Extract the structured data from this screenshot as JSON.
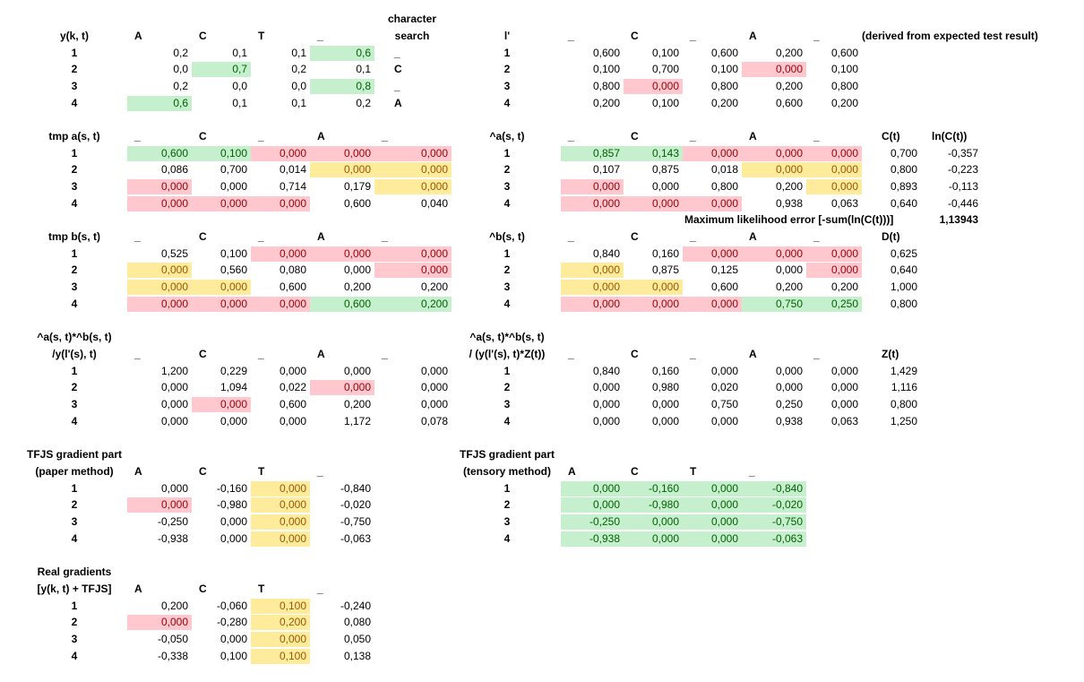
{
  "colors": {
    "green": "#c6efce",
    "red": "#ffc7ce",
    "yellow": "#ffeb9c"
  },
  "blocks": [
    {
      "id": "y",
      "x": 0,
      "top": 32,
      "label": [
        "y(k, t)"
      ],
      "col_headers": [
        "A",
        "C",
        "T",
        "_"
      ],
      "rows": [
        [
          "1",
          "0,2",
          "0,1",
          "0,1",
          "0,6"
        ],
        [
          "2",
          "0,0",
          "0,7",
          "0,2",
          "0,1"
        ],
        [
          "3",
          "0,2",
          "0,0",
          "0,0",
          "0,8"
        ],
        [
          "4",
          "0,6",
          "0,1",
          "0,1",
          "0,2"
        ]
      ],
      "hl": [
        [
          0,
          3,
          "green"
        ],
        [
          1,
          1,
          "green"
        ],
        [
          2,
          3,
          "green"
        ],
        [
          3,
          0,
          "green"
        ]
      ]
    },
    {
      "id": "lprime",
      "x": 1,
      "top": 32,
      "label": [
        "l'"
      ],
      "col_headers": [
        "_",
        "C",
        "_",
        "A",
        "_"
      ],
      "rows": [
        [
          "1",
          "0,600",
          "0,100",
          "0,600",
          "0,200",
          "0,600"
        ],
        [
          "2",
          "0,100",
          "0,700",
          "0,100",
          "0,000",
          "0,100"
        ],
        [
          "3",
          "0,800",
          "0,000",
          "0,800",
          "0,200",
          "0,800"
        ],
        [
          "4",
          "0,200",
          "0,100",
          "0,200",
          "0,600",
          "0,200"
        ]
      ],
      "hl": [
        [
          1,
          3,
          "red"
        ],
        [
          2,
          1,
          "red"
        ]
      ]
    },
    {
      "id": "tmpa",
      "x": 0,
      "top": 144,
      "label": [
        "tmp a(s, t)"
      ],
      "col_headers": [
        "_",
        "C",
        "_",
        "A",
        "_"
      ],
      "rows": [
        [
          "1",
          "0,600",
          "0,100",
          "0,000",
          "0,000",
          "0,000"
        ],
        [
          "2",
          "0,086",
          "0,700",
          "0,014",
          "0,000",
          "0,000"
        ],
        [
          "3",
          "0,000",
          "0,000",
          "0,714",
          "0,179",
          "0,000"
        ],
        [
          "4",
          "0,000",
          "0,000",
          "0,000",
          "0,600",
          "0,040"
        ]
      ],
      "hl": [
        [
          0,
          0,
          "green"
        ],
        [
          0,
          1,
          "green"
        ],
        [
          0,
          2,
          "red"
        ],
        [
          0,
          3,
          "red"
        ],
        [
          0,
          4,
          "red"
        ],
        [
          1,
          3,
          "yellow"
        ],
        [
          1,
          4,
          "yellow"
        ],
        [
          2,
          0,
          "red"
        ],
        [
          2,
          4,
          "yellow"
        ],
        [
          3,
          0,
          "red"
        ],
        [
          3,
          1,
          "red"
        ],
        [
          3,
          2,
          "red"
        ]
      ]
    },
    {
      "id": "hata",
      "x": 1,
      "top": 144,
      "label": [
        "^a(s, t)"
      ],
      "col_headers": [
        "_",
        "C",
        "_",
        "A",
        "_"
      ],
      "rows": [
        [
          "1",
          "0,857",
          "0,143",
          "0,000",
          "0,000",
          "0,000"
        ],
        [
          "2",
          "0,107",
          "0,875",
          "0,018",
          "0,000",
          "0,000"
        ],
        [
          "3",
          "0,000",
          "0,000",
          "0,800",
          "0,200",
          "0,000"
        ],
        [
          "4",
          "0,000",
          "0,000",
          "0,000",
          "0,938",
          "0,063"
        ]
      ],
      "hl": [
        [
          0,
          0,
          "green"
        ],
        [
          0,
          1,
          "green"
        ],
        [
          0,
          2,
          "red"
        ],
        [
          0,
          3,
          "red"
        ],
        [
          0,
          4,
          "red"
        ],
        [
          1,
          3,
          "yellow"
        ],
        [
          1,
          4,
          "yellow"
        ],
        [
          2,
          0,
          "red"
        ],
        [
          2,
          4,
          "yellow"
        ],
        [
          3,
          0,
          "red"
        ],
        [
          3,
          1,
          "red"
        ],
        [
          3,
          2,
          "red"
        ]
      ]
    },
    {
      "id": "tmpb",
      "x": 0,
      "top": 256,
      "label": [
        "tmp b(s, t)"
      ],
      "col_headers": [
        "_",
        "C",
        "_",
        "A",
        "_"
      ],
      "rows": [
        [
          "1",
          "0,525",
          "0,100",
          "0,000",
          "0,000",
          "0,000"
        ],
        [
          "2",
          "0,000",
          "0,560",
          "0,080",
          "0,000",
          "0,000"
        ],
        [
          "3",
          "0,000",
          "0,000",
          "0,600",
          "0,200",
          "0,200"
        ],
        [
          "4",
          "0,000",
          "0,000",
          "0,000",
          "0,600",
          "0,200"
        ]
      ],
      "hl": [
        [
          0,
          2,
          "red"
        ],
        [
          0,
          3,
          "red"
        ],
        [
          0,
          4,
          "red"
        ],
        [
          1,
          0,
          "yellow"
        ],
        [
          1,
          4,
          "red"
        ],
        [
          2,
          0,
          "yellow"
        ],
        [
          2,
          1,
          "yellow"
        ],
        [
          3,
          0,
          "red"
        ],
        [
          3,
          1,
          "red"
        ],
        [
          3,
          2,
          "red"
        ],
        [
          3,
          3,
          "green"
        ],
        [
          3,
          4,
          "green"
        ]
      ]
    },
    {
      "id": "hatb",
      "x": 1,
      "top": 256,
      "label": [
        "^b(s, t)"
      ],
      "col_headers": [
        "_",
        "C",
        "_",
        "A",
        "_"
      ],
      "rows": [
        [
          "1",
          "0,840",
          "0,160",
          "0,000",
          "0,000",
          "0,000"
        ],
        [
          "2",
          "0,000",
          "0,875",
          "0,125",
          "0,000",
          "0,000"
        ],
        [
          "3",
          "0,000",
          "0,000",
          "0,600",
          "0,200",
          "0,200"
        ],
        [
          "4",
          "0,000",
          "0,000",
          "0,000",
          "0,750",
          "0,250"
        ]
      ],
      "hl": [
        [
          0,
          2,
          "red"
        ],
        [
          0,
          3,
          "red"
        ],
        [
          0,
          4,
          "red"
        ],
        [
          1,
          0,
          "yellow"
        ],
        [
          1,
          4,
          "red"
        ],
        [
          2,
          0,
          "yellow"
        ],
        [
          2,
          1,
          "yellow"
        ],
        [
          3,
          0,
          "red"
        ],
        [
          3,
          1,
          "red"
        ],
        [
          3,
          2,
          "red"
        ],
        [
          3,
          3,
          "green"
        ],
        [
          3,
          4,
          "green"
        ]
      ]
    },
    {
      "id": "ab_y",
      "x": 0,
      "top": 387,
      "label": [
        "^a(s, t)*^b(s, t)",
        "/y(l'(s), t)"
      ],
      "col_headers": [
        "_",
        "C",
        "_",
        "A",
        "_"
      ],
      "rows": [
        [
          "1",
          "1,200",
          "0,229",
          "0,000",
          "0,000",
          "0,000"
        ],
        [
          "2",
          "0,000",
          "1,094",
          "0,022",
          "0,000",
          "0,000"
        ],
        [
          "3",
          "0,000",
          "0,000",
          "0,600",
          "0,200",
          "0,000"
        ],
        [
          "4",
          "0,000",
          "0,000",
          "0,000",
          "1,172",
          "0,078"
        ]
      ],
      "hl": [
        [
          1,
          3,
          "red"
        ],
        [
          2,
          1,
          "red"
        ]
      ]
    },
    {
      "id": "ab_yz",
      "x": 1,
      "top": 387,
      "label": [
        "^a(s, t)*^b(s, t)",
        "/ (y(l'(s), t)*Z(t))"
      ],
      "col_headers": [
        "_",
        "C",
        "_",
        "A",
        "_"
      ],
      "rows": [
        [
          "1",
          "0,840",
          "0,160",
          "0,000",
          "0,000",
          "0,000"
        ],
        [
          "2",
          "0,000",
          "0,980",
          "0,020",
          "0,000",
          "0,000"
        ],
        [
          "3",
          "0,000",
          "0,000",
          "0,750",
          "0,250",
          "0,000"
        ],
        [
          "4",
          "0,000",
          "0,000",
          "0,000",
          "0,938",
          "0,063"
        ]
      ],
      "hl": []
    },
    {
      "id": "tfjs_paper",
      "x": 0,
      "top": 518,
      "label": [
        "TFJS gradient part",
        "(paper method)"
      ],
      "col_headers": [
        "A",
        "C",
        "T",
        "_"
      ],
      "rows": [
        [
          "1",
          "0,000",
          "-0,160",
          "0,000",
          "-0,840"
        ],
        [
          "2",
          "0,000",
          "-0,980",
          "0,000",
          "-0,020"
        ],
        [
          "3",
          "-0,250",
          "0,000",
          "0,000",
          "-0,750"
        ],
        [
          "4",
          "-0,938",
          "0,000",
          "0,000",
          "-0,063"
        ]
      ],
      "hl": [
        [
          0,
          2,
          "yellow"
        ],
        [
          1,
          0,
          "red"
        ],
        [
          1,
          2,
          "yellow"
        ],
        [
          2,
          2,
          "yellow"
        ],
        [
          3,
          2,
          "yellow"
        ]
      ]
    },
    {
      "id": "tfjs_tensory",
      "x": 1,
      "top": 518,
      "label": [
        "TFJS gradient part",
        "(tensory method)"
      ],
      "col_headers": [
        "A",
        "C",
        "T",
        "_"
      ],
      "rows": [
        [
          "1",
          "0,000",
          "-0,160",
          "0,000",
          "-0,840"
        ],
        [
          "2",
          "0,000",
          "-0,980",
          "0,000",
          "-0,020"
        ],
        [
          "3",
          "-0,250",
          "0,000",
          "0,000",
          "-0,750"
        ],
        [
          "4",
          "-0,938",
          "0,000",
          "0,000",
          "-0,063"
        ]
      ],
      "hl": [
        [
          0,
          0,
          "green"
        ],
        [
          0,
          1,
          "green"
        ],
        [
          0,
          2,
          "green"
        ],
        [
          0,
          3,
          "green"
        ],
        [
          1,
          0,
          "green"
        ],
        [
          1,
          1,
          "green"
        ],
        [
          1,
          2,
          "green"
        ],
        [
          1,
          3,
          "green"
        ],
        [
          2,
          0,
          "green"
        ],
        [
          2,
          1,
          "green"
        ],
        [
          2,
          2,
          "green"
        ],
        [
          2,
          3,
          "green"
        ],
        [
          3,
          0,
          "green"
        ],
        [
          3,
          1,
          "green"
        ],
        [
          3,
          2,
          "green"
        ],
        [
          3,
          3,
          "green"
        ]
      ]
    },
    {
      "id": "real",
      "x": 0,
      "top": 649,
      "label": [
        "Real gradients",
        "[y(k, t) + TFJS]"
      ],
      "col_headers": [
        "A",
        "C",
        "T",
        "_"
      ],
      "rows": [
        [
          "1",
          "0,200",
          "-0,060",
          "0,100",
          "-0,240"
        ],
        [
          "2",
          "0,000",
          "-0,280",
          "0,200",
          "0,080"
        ],
        [
          "3",
          "-0,050",
          "0,000",
          "0,000",
          "0,050"
        ],
        [
          "4",
          "-0,338",
          "0,100",
          "0,100",
          "0,138"
        ]
      ],
      "hl": [
        [
          0,
          2,
          "yellow"
        ],
        [
          1,
          0,
          "red"
        ],
        [
          1,
          2,
          "yellow"
        ],
        [
          2,
          2,
          "yellow"
        ],
        [
          3,
          2,
          "yellow"
        ]
      ]
    }
  ],
  "char_search": {
    "header": [
      "character",
      "search"
    ],
    "values": [
      "_",
      "C",
      "_",
      "A"
    ]
  },
  "derived_note": "(derived from expected test result)",
  "ct": {
    "header": "C(t)",
    "values": [
      "0,700",
      "0,800",
      "0,893",
      "0,640"
    ]
  },
  "lnct": {
    "header": "ln(C(t))",
    "values": [
      "-0,357",
      "-0,223",
      "-0,113",
      "-0,446"
    ]
  },
  "max_likelihood": {
    "label": "Maximum likelihood error [-sum(ln(C(t)))]",
    "value": "1,13943"
  },
  "dt": {
    "header": "D(t)",
    "values": [
      "0,625",
      "0,640",
      "1,000",
      "0,800"
    ]
  },
  "zt": {
    "header": "Z(t)",
    "values": [
      "1,429",
      "1,116",
      "0,800",
      "1,250"
    ]
  }
}
